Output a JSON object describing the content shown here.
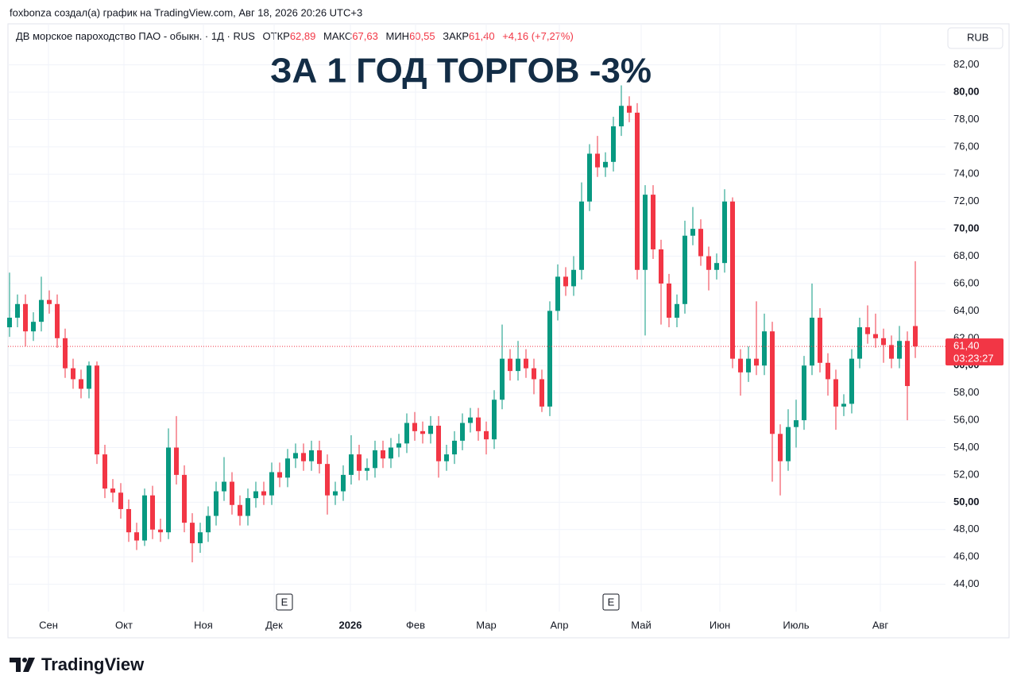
{
  "chart_data": {
    "type": "candlestick",
    "attribution": "foxbonza создал(а) график на TradingView.com, Авг 18, 2026 20:26 UTC+3",
    "legend": {
      "symbol": "ДВ морское пароходство ПАО - обыкн. · 1Д · RUS",
      "items": [
        {
          "label": "ОТКР",
          "value": "62,89"
        },
        {
          "label": "МАКС",
          "value": "67,63"
        },
        {
          "label": "МИН",
          "value": "60,55"
        },
        {
          "label": "ЗАКР",
          "value": "61,40"
        }
      ],
      "change": "+4,16 (+7,27%)"
    },
    "currency": "RUB",
    "title": "ЗА 1 ГОД ТОРГОВ -3%",
    "up_color": "#089981",
    "down_color": "#f23645",
    "open": [
      62.8,
      63.5,
      64.5,
      62.5,
      63.2,
      64.8,
      64.5,
      62.0,
      59.8,
      59.0,
      58.3,
      60.0,
      53.5,
      51.0,
      50.7,
      49.5,
      47.8,
      47.2,
      50.5,
      48.0,
      47.8,
      54.0,
      52.0,
      48.5,
      47.0,
      47.8,
      49.0,
      50.8,
      51.5,
      49.8,
      49.0,
      50.3,
      50.8,
      50.5,
      52.2,
      51.8,
      53.2,
      53.6,
      53.0,
      53.8,
      52.8,
      50.5,
      50.8,
      52.0,
      53.5,
      52.3,
      52.5,
      53.8,
      53.2,
      54.0,
      54.3,
      55.8,
      55.2,
      55.0,
      55.6,
      53.0,
      53.5,
      54.5,
      55.8,
      56.2,
      55.2,
      54.6,
      57.5,
      60.5,
      59.6,
      60.5,
      59.8,
      59.0,
      57.0,
      64.0,
      66.5,
      65.8,
      67.0,
      72.0,
      75.5,
      74.5,
      74.9,
      77.5,
      79.0,
      78.5,
      67.0,
      72.5,
      68.5,
      66.0,
      63.5,
      64.5,
      69.5,
      70.0,
      68.0,
      67.0,
      67.5,
      72.0,
      60.5,
      59.5,
      60.5,
      60.0,
      62.5,
      55.0,
      53.0,
      55.5,
      56.0,
      60.0,
      63.5,
      60.2,
      59.0,
      57.0,
      57.2,
      60.5,
      62.8,
      62.3,
      62.0,
      61.5,
      60.5,
      61.8,
      62.89
    ],
    "high": [
      66.8,
      65.2,
      65.2,
      63.9,
      66.5,
      65.5,
      65.2,
      62.7,
      60.5,
      59.7,
      60.3,
      60.3,
      54.2,
      51.7,
      51.4,
      50.2,
      48.5,
      51.0,
      51.2,
      48.8,
      55.4,
      56.3,
      52.7,
      49.2,
      48.5,
      49.7,
      51.5,
      53.3,
      52.2,
      50.5,
      51.0,
      51.5,
      51.5,
      52.9,
      52.9,
      53.9,
      54.3,
      54.3,
      54.5,
      54.5,
      53.5,
      51.5,
      52.7,
      54.9,
      54.2,
      53.2,
      54.5,
      54.5,
      54.7,
      55.0,
      56.5,
      56.6,
      55.9,
      56.3,
      56.3,
      54.2,
      55.2,
      56.5,
      56.9,
      56.9,
      55.9,
      58.2,
      63.0,
      61.2,
      61.8,
      61.2,
      60.5,
      59.7,
      64.7,
      67.4,
      67.2,
      68.0,
      73.4,
      76.2,
      76.8,
      75.6,
      78.2,
      80.5,
      79.7,
      79.2,
      73.2,
      73.2,
      69.2,
      66.7,
      65.2,
      70.6,
      71.6,
      70.7,
      68.7,
      68.2,
      72.9,
      72.3,
      61.2,
      61.4,
      64.7,
      63.8,
      63.2,
      55.7,
      56.8,
      57.5,
      60.7,
      66.0,
      64.2,
      60.9,
      59.7,
      57.9,
      61.2,
      63.5,
      64.4,
      63.8,
      62.7,
      62.2,
      62.9,
      62.5,
      67.63
    ],
    "low": [
      62.1,
      62.8,
      61.4,
      61.8,
      62.5,
      63.8,
      61.3,
      59.1,
      58.3,
      57.6,
      57.6,
      52.8,
      50.3,
      50.0,
      48.8,
      47.1,
      46.5,
      46.8,
      47.3,
      47.1,
      47.3,
      51.3,
      47.8,
      45.6,
      46.3,
      47.1,
      48.3,
      50.1,
      49.1,
      48.3,
      48.3,
      49.6,
      49.8,
      49.8,
      51.1,
      51.1,
      52.5,
      52.3,
      52.3,
      52.1,
      49.1,
      49.8,
      50.1,
      51.3,
      51.6,
      51.6,
      51.8,
      52.5,
      52.5,
      53.3,
      53.6,
      54.5,
      54.3,
      54.3,
      51.8,
      52.3,
      52.8,
      53.8,
      55.1,
      54.5,
      53.5,
      53.9,
      56.8,
      58.9,
      58.9,
      59.1,
      57.9,
      56.6,
      56.3,
      63.3,
      65.1,
      65.1,
      66.3,
      71.3,
      73.8,
      73.8,
      74.2,
      76.8,
      77.8,
      66.3,
      62.2,
      67.8,
      63.0,
      62.8,
      62.8,
      63.8,
      68.8,
      67.3,
      65.5,
      66.3,
      66.8,
      59.8,
      57.8,
      58.8,
      59.3,
      59.3,
      51.5,
      50.5,
      52.3,
      54.0,
      55.3,
      59.3,
      59.5,
      57.8,
      55.3,
      56.3,
      56.5,
      59.8,
      61.6,
      61.3,
      60.2,
      59.8,
      59.8,
      56.0,
      60.55
    ],
    "close": [
      63.5,
      64.5,
      62.5,
      63.2,
      64.8,
      64.5,
      62.0,
      59.8,
      59.0,
      58.3,
      60.0,
      53.5,
      51.0,
      50.7,
      49.5,
      47.8,
      47.2,
      50.5,
      48.0,
      47.8,
      54.0,
      52.0,
      48.5,
      47.0,
      47.8,
      49.0,
      50.8,
      51.5,
      49.8,
      49.0,
      50.3,
      50.8,
      50.5,
      52.2,
      51.8,
      53.2,
      53.6,
      53.0,
      53.8,
      52.8,
      50.5,
      50.8,
      52.0,
      53.5,
      52.3,
      52.5,
      53.8,
      53.2,
      54.0,
      54.3,
      55.8,
      55.2,
      55.0,
      55.6,
      53.0,
      53.5,
      54.5,
      55.8,
      56.2,
      55.2,
      54.6,
      57.5,
      60.5,
      59.6,
      60.5,
      59.8,
      59.0,
      57.0,
      64.0,
      66.5,
      65.8,
      67.0,
      72.0,
      75.5,
      74.5,
      74.9,
      77.5,
      79.0,
      78.5,
      67.0,
      72.5,
      68.5,
      66.0,
      63.5,
      64.5,
      69.5,
      70.0,
      68.0,
      67.0,
      67.5,
      72.0,
      60.5,
      59.5,
      60.5,
      60.0,
      62.5,
      55.0,
      53.0,
      55.5,
      56.0,
      60.0,
      63.5,
      60.2,
      59.0,
      57.0,
      57.2,
      60.5,
      62.8,
      62.3,
      62.0,
      61.5,
      60.5,
      61.8,
      58.5,
      61.4
    ],
    "xlim": [
      -0.2,
      117.8
    ],
    "xticks": [
      {
        "value": 4.9,
        "label": "Сен"
      },
      {
        "value": 14.4,
        "label": "Окт"
      },
      {
        "value": 24.4,
        "label": "Ноя"
      },
      {
        "value": 33.3,
        "label": "Дек"
      },
      {
        "value": 42.9,
        "label": "2026"
      },
      {
        "value": 51.1,
        "label": "Фев"
      },
      {
        "value": 60,
        "label": "Мар"
      },
      {
        "value": 69.2,
        "label": "Апр"
      },
      {
        "value": 79.5,
        "label": "Май"
      },
      {
        "value": 89.4,
        "label": "Июн"
      },
      {
        "value": 99,
        "label": "Июль"
      },
      {
        "value": 109.6,
        "label": "Авг"
      }
    ],
    "ylim": [
      42,
      85
    ],
    "yticks": [
      {
        "value": 44,
        "label": "44,00"
      },
      {
        "value": 46,
        "label": "46,00"
      },
      {
        "value": 48,
        "label": "48,00"
      },
      {
        "value": 50,
        "label": "50,00"
      },
      {
        "value": 52,
        "label": "52,00"
      },
      {
        "value": 54,
        "label": "54,00"
      },
      {
        "value": 56,
        "label": "56,00"
      },
      {
        "value": 58,
        "label": "58,00"
      },
      {
        "value": 60,
        "label": "60,00"
      },
      {
        "value": 62,
        "label": "62,00"
      },
      {
        "value": 64,
        "label": "64,00"
      },
      {
        "value": 66,
        "label": "66,00"
      },
      {
        "value": 68,
        "label": "68,00"
      },
      {
        "value": 70,
        "label": "70,00"
      },
      {
        "value": 72,
        "label": "72,00"
      },
      {
        "value": 74,
        "label": "74,00"
      },
      {
        "value": 76,
        "label": "76,00"
      },
      {
        "value": 78,
        "label": "78,00"
      },
      {
        "value": 80,
        "label": "80,00"
      },
      {
        "value": 82,
        "label": "82,00"
      }
    ],
    "grid": true,
    "events": [
      {
        "x": 34.6,
        "label": "E"
      },
      {
        "x": 75.7,
        "label": "E"
      }
    ],
    "last_price": {
      "value": 61.4,
      "label": "61,40"
    },
    "countdown": "03:23:27",
    "brand": "TradingView"
  }
}
